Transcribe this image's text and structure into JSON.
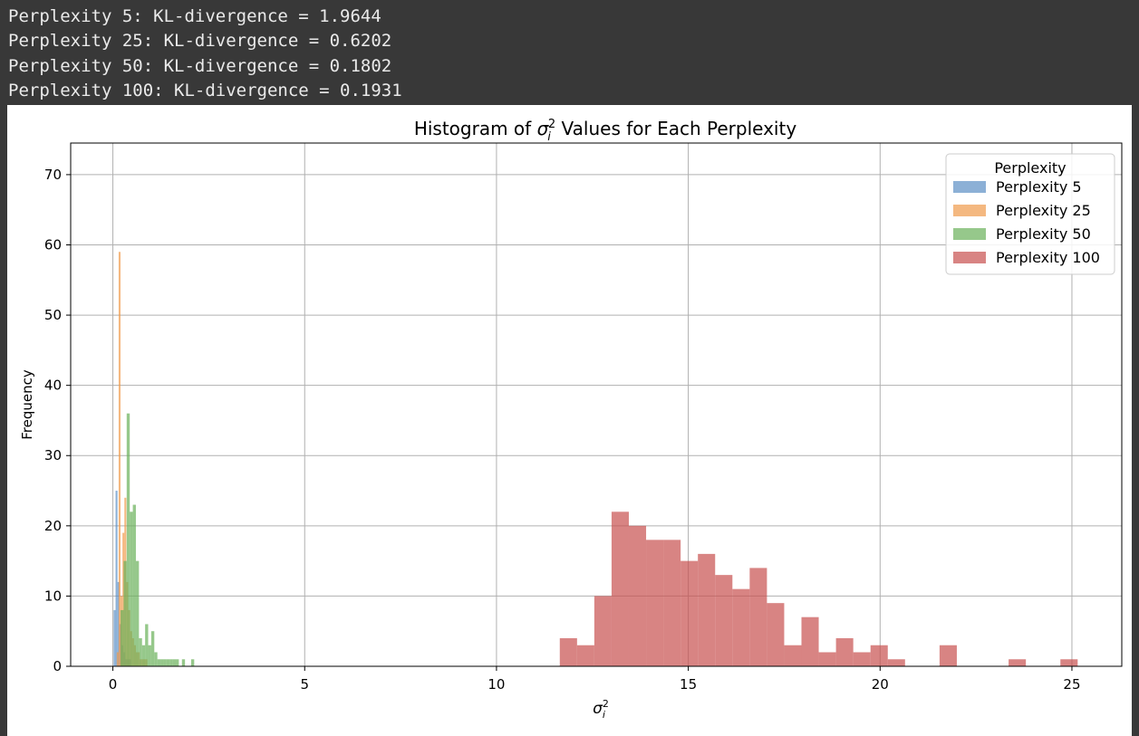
{
  "console": {
    "lines": [
      "Perplexity 5: KL-divergence = 1.9644",
      "Perplexity 25: KL-divergence = 0.6202",
      "Perplexity 50: KL-divergence = 0.1802",
      "Perplexity 100: KL-divergence = 0.1931"
    ]
  },
  "chart_data": {
    "type": "bar",
    "title_prefix": "Histogram of ",
    "title_suffix": " Values for Each Perplexity",
    "xlabel": "σ_i^2",
    "ylabel": "Frequency",
    "xlim": [
      -1.1,
      26.3
    ],
    "ylim": [
      0,
      74.5
    ],
    "xticks": [
      0,
      5,
      10,
      15,
      20,
      25
    ],
    "yticks": [
      0,
      10,
      20,
      30,
      40,
      50,
      60,
      70
    ],
    "grid": true,
    "legend": {
      "title": "Perplexity",
      "placement": "top-right"
    },
    "series": [
      {
        "name": "Perplexity 5",
        "color": "#5b8ec4",
        "bins": [
          [
            0.02,
            0.07,
            8
          ],
          [
            0.07,
            0.12,
            25
          ],
          [
            0.12,
            0.17,
            12
          ],
          [
            0.17,
            0.22,
            6
          ],
          [
            0.22,
            0.27,
            3
          ],
          [
            0.27,
            0.32,
            2
          ],
          [
            0.32,
            0.37,
            1
          ],
          [
            0.37,
            0.42,
            1
          ],
          [
            0.42,
            0.47,
            1
          ]
        ]
      },
      {
        "name": "Perplexity 25",
        "color": "#f09a4a",
        "bins": [
          [
            0.1,
            0.15,
            2
          ],
          [
            0.15,
            0.2,
            59
          ],
          [
            0.2,
            0.25,
            10
          ],
          [
            0.25,
            0.3,
            19
          ],
          [
            0.3,
            0.35,
            24
          ],
          [
            0.35,
            0.4,
            12
          ],
          [
            0.4,
            0.45,
            8
          ],
          [
            0.45,
            0.5,
            5
          ],
          [
            0.5,
            0.55,
            4
          ],
          [
            0.55,
            0.6,
            3
          ],
          [
            0.6,
            0.65,
            2
          ],
          [
            0.65,
            0.7,
            2
          ],
          [
            0.7,
            0.75,
            1
          ],
          [
            0.75,
            0.8,
            1
          ],
          [
            0.8,
            0.85,
            1
          ],
          [
            0.85,
            0.9,
            1
          ]
        ]
      },
      {
        "name": "Perplexity 50",
        "color": "#6ab15a",
        "bins": [
          [
            0.2,
            0.28,
            8
          ],
          [
            0.28,
            0.36,
            15
          ],
          [
            0.36,
            0.44,
            36
          ],
          [
            0.44,
            0.52,
            22
          ],
          [
            0.52,
            0.6,
            23
          ],
          [
            0.6,
            0.68,
            15
          ],
          [
            0.68,
            0.76,
            4
          ],
          [
            0.76,
            0.84,
            3
          ],
          [
            0.84,
            0.92,
            6
          ],
          [
            0.92,
            1.0,
            3
          ],
          [
            1.0,
            1.08,
            5
          ],
          [
            1.08,
            1.16,
            2
          ],
          [
            1.16,
            1.24,
            1
          ],
          [
            1.24,
            1.32,
            1
          ],
          [
            1.32,
            1.4,
            1
          ],
          [
            1.4,
            1.48,
            1
          ],
          [
            1.48,
            1.56,
            1
          ],
          [
            1.56,
            1.64,
            1
          ],
          [
            1.64,
            1.72,
            1
          ],
          [
            1.8,
            1.88,
            1
          ],
          [
            2.04,
            2.12,
            1
          ]
        ]
      },
      {
        "name": "Perplexity 100",
        "color": "#c8504f",
        "bins": [
          [
            11.65,
            12.1,
            4
          ],
          [
            12.1,
            12.55,
            3
          ],
          [
            12.55,
            13.0,
            10
          ],
          [
            13.0,
            13.45,
            22
          ],
          [
            13.45,
            13.9,
            20
          ],
          [
            13.9,
            14.35,
            18
          ],
          [
            14.35,
            14.8,
            18
          ],
          [
            14.8,
            15.25,
            15
          ],
          [
            15.25,
            15.7,
            16
          ],
          [
            15.7,
            16.15,
            13
          ],
          [
            16.15,
            16.6,
            11
          ],
          [
            16.6,
            17.05,
            14
          ],
          [
            17.05,
            17.5,
            9
          ],
          [
            17.5,
            17.95,
            3
          ],
          [
            17.95,
            18.4,
            7
          ],
          [
            18.4,
            18.85,
            2
          ],
          [
            18.85,
            19.3,
            4
          ],
          [
            19.3,
            19.75,
            2
          ],
          [
            19.75,
            20.2,
            3
          ],
          [
            20.2,
            20.65,
            1
          ],
          [
            21.55,
            22.0,
            3
          ],
          [
            23.35,
            23.8,
            1
          ],
          [
            24.7,
            25.15,
            1
          ]
        ]
      }
    ]
  }
}
